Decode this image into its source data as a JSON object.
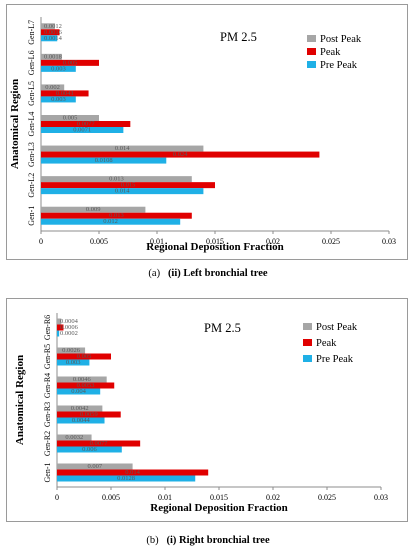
{
  "colors": {
    "Post Peak": "#a6a6a6",
    "Peak": "#e00000",
    "Pre Peak": "#1fb0e6",
    "axis": "#8c8c8c",
    "label": "#5a5a5a"
  },
  "chart_data": [
    {
      "type": "bar",
      "orientation": "horizontal",
      "title": "PM 2.5",
      "xlabel": "Regional Deposition Fraction",
      "ylabel": "Anatomical Region",
      "xlim": [
        0,
        0.03
      ],
      "xticks": [
        "0",
        "0.005",
        "0.01",
        "0.015",
        "0.02",
        "0.025",
        "0.03"
      ],
      "legend_position": "top-right",
      "categories": [
        "Gen-1",
        "Gen-L2",
        "Gen-L3",
        "Gen-L4",
        "Gen-L5",
        "Gen-L6",
        "Gen-L7"
      ],
      "series": [
        {
          "name": "Post Peak",
          "values": [
            0.009,
            0.013,
            0.014,
            0.005,
            0.002,
            0.0018,
            0.0012
          ],
          "labels": [
            "0.009",
            "0.013",
            "0.014",
            "0.005",
            "0.002",
            "0.0018",
            "0.0012"
          ]
        },
        {
          "name": "Peak",
          "values": [
            0.013,
            0.015,
            0.024,
            0.0077,
            0.0041,
            0.005,
            0.0016
          ],
          "labels": [
            "0.013",
            "0.015",
            "0.024",
            "0.0077",
            "0.0041",
            "0.005",
            "0.0016"
          ]
        },
        {
          "name": "Pre Peak",
          "values": [
            0.012,
            0.014,
            0.0108,
            0.0071,
            0.003,
            0.003,
            0.0014
          ],
          "labels": [
            "0.012",
            "0.014",
            "0.0108",
            "0.0071",
            "0.003",
            "0.003",
            "0.0014"
          ]
        }
      ]
    },
    {
      "type": "bar",
      "orientation": "horizontal",
      "title": "PM 2.5",
      "xlabel": "Regional Deposition Fraction",
      "ylabel": "Anatomical Region",
      "xlim": [
        0,
        0.03
      ],
      "xticks": [
        "0",
        "0.005",
        "0.01",
        "0.015",
        "0.02",
        "0.025",
        "0.03"
      ],
      "legend_position": "top-right",
      "categories": [
        "Gen-1",
        "Gen-R2",
        "Gen-R3",
        "Gen-R4",
        "Gen-R5",
        "Gen-R6"
      ],
      "series": [
        {
          "name": "Post Peak",
          "values": [
            0.007,
            0.0032,
            0.0042,
            0.0046,
            0.0026,
            0.0004
          ],
          "labels": [
            "0.007",
            "0.0032",
            "0.0042",
            "0.0046",
            "0.0026",
            "0.0004"
          ]
        },
        {
          "name": "Peak",
          "values": [
            0.014,
            0.0077,
            0.0059,
            0.0053,
            0.005,
            0.0006
          ],
          "labels": [
            "0.014",
            "0.0077",
            "0.0059",
            "0.0053",
            "0.005",
            "0.0006"
          ]
        },
        {
          "name": "Pre Peak",
          "values": [
            0.0128,
            0.006,
            0.0044,
            0.004,
            0.003,
            0.0002
          ],
          "labels": [
            "0.0128",
            "0.006",
            "0.0044",
            "0.004",
            "0.003",
            "0.0002"
          ]
        }
      ]
    }
  ],
  "captions": [
    {
      "prefix": "(a)",
      "text": "(ii) Left bronchial tree"
    },
    {
      "prefix": "(b)",
      "text": "(i) Right bronchial tree"
    }
  ]
}
